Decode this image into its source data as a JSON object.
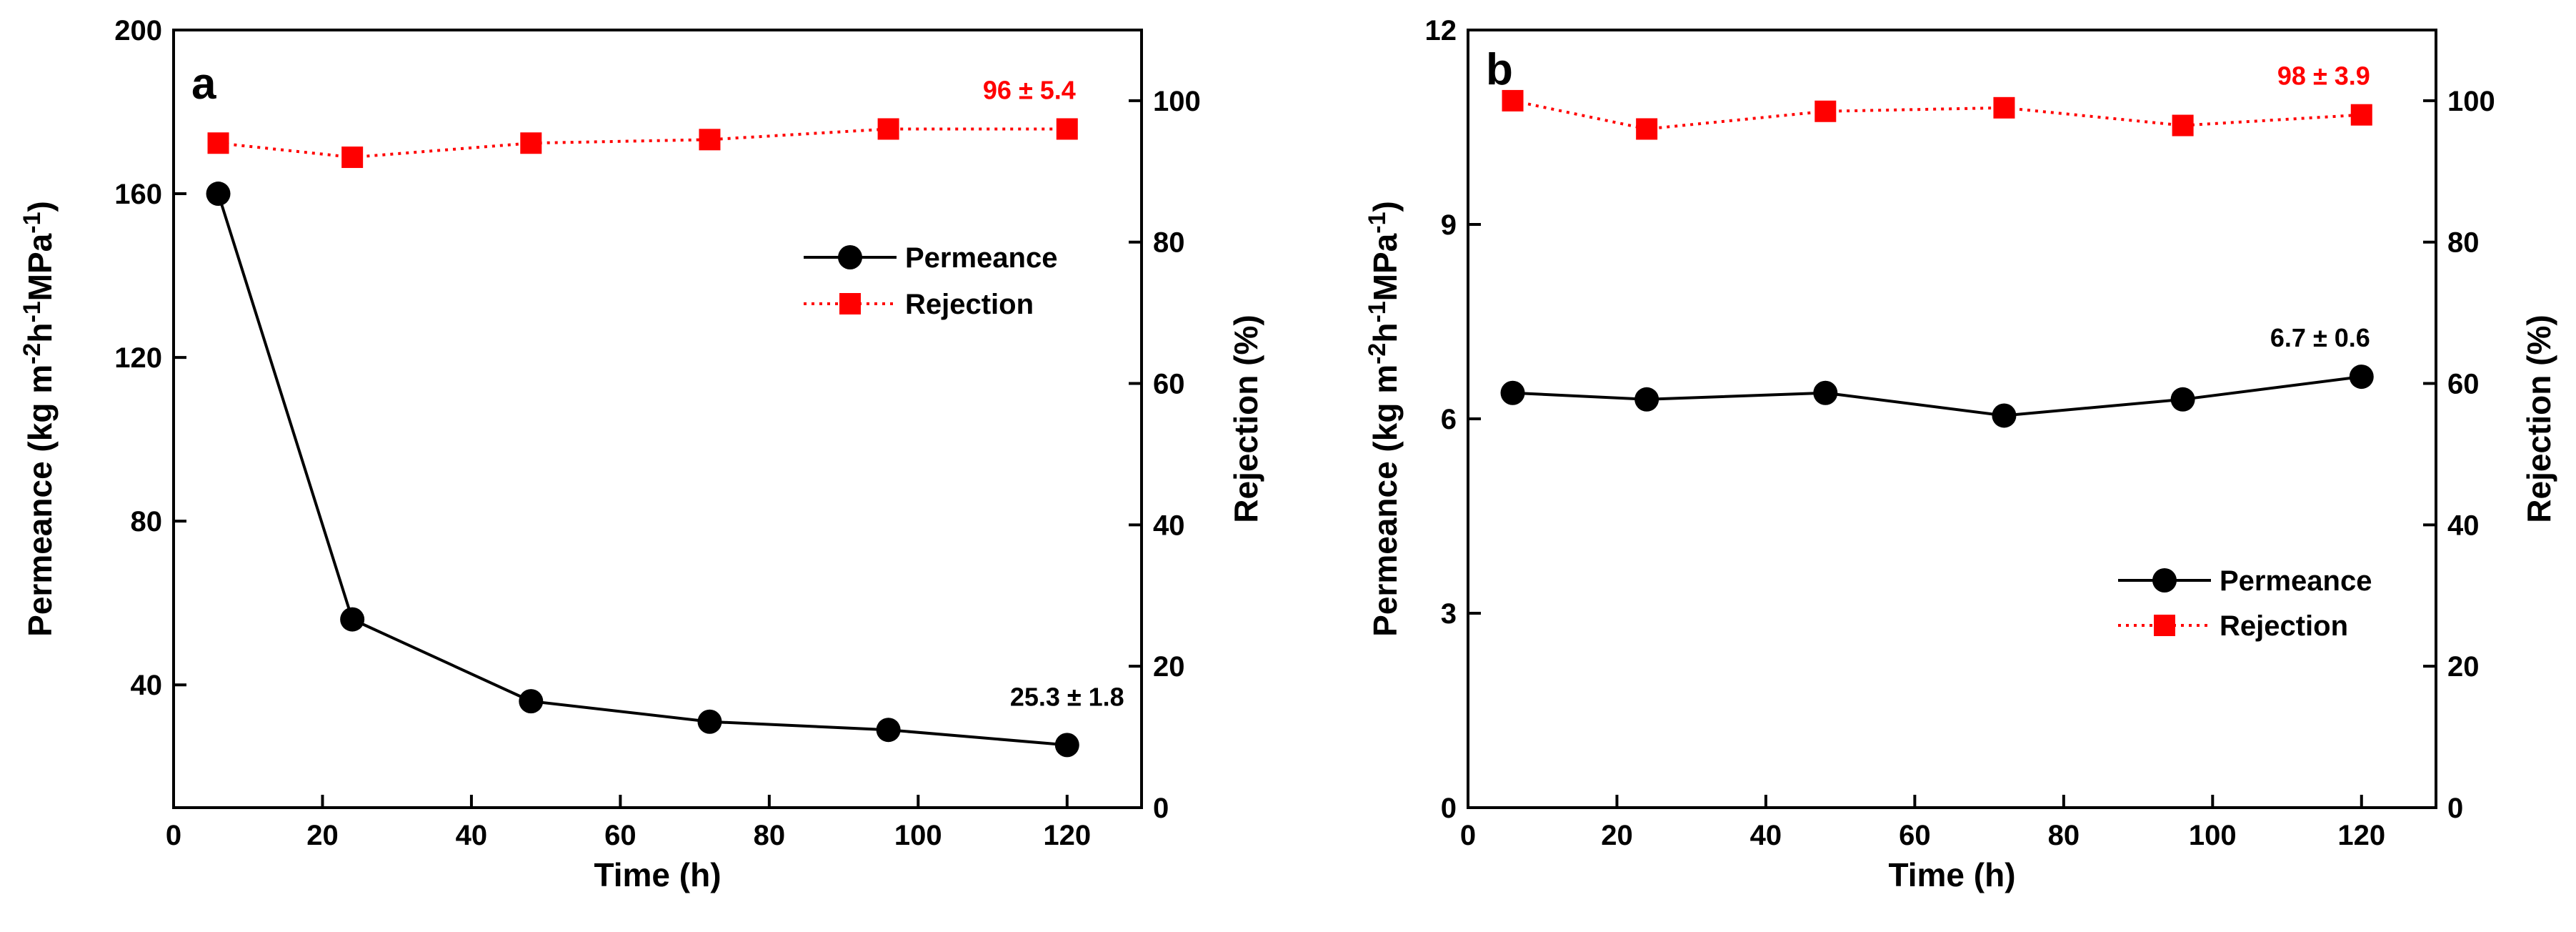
{
  "colors": {
    "permeance": "#000000",
    "rejection": "#ff0000"
  },
  "chart_data": [
    {
      "panel": "a",
      "type": "line",
      "xlabel": "Time (h)",
      "ylabel_left": "Permeance (kg m-2h-1MPa-1)",
      "ylabel_left_parts": {
        "base": "Permeance (kg m",
        "sup1": "-2",
        "mid1": "h",
        "sup2": "-1",
        "mid2": "MPa",
        "sup3": "-1",
        "end": ")"
      },
      "ylabel_right": "Rejection (%)",
      "xlim": [
        0,
        130
      ],
      "xticks": [
        "0",
        "20",
        "40",
        "60",
        "80",
        "100",
        "120"
      ],
      "ylim_left": [
        10,
        200
      ],
      "yticks_left": [
        "40",
        "80",
        "120",
        "160",
        "200"
      ],
      "ylim_right": [
        0,
        110
      ],
      "yticks_right": [
        "0",
        "20",
        "40",
        "60",
        "80",
        "100"
      ],
      "legend_position": "middle-right",
      "series": [
        {
          "name": "Permeance",
          "axis": "left",
          "style": "solid",
          "marker": "circle",
          "x": [
            6,
            24,
            48,
            72,
            96,
            120
          ],
          "values": [
            160,
            56,
            36,
            31,
            29,
            25.3
          ]
        },
        {
          "name": "Rejection",
          "axis": "right",
          "style": "dotted",
          "marker": "square",
          "x": [
            6,
            24,
            48,
            72,
            96,
            120
          ],
          "values": [
            94,
            92,
            94,
            94.5,
            96,
            96
          ]
        }
      ],
      "annotations": [
        {
          "text": "96 ± 5.4",
          "series": "Rejection"
        },
        {
          "text": "25.3 ± 1.8",
          "series": "Permeance"
        }
      ]
    },
    {
      "panel": "b",
      "type": "line",
      "xlabel": "Time (h)",
      "ylabel_left": "Permeance (kg m-2h-1MPa-1)",
      "ylabel_left_parts": {
        "base": "Permeance (kg m",
        "sup1": "-2",
        "mid1": "h",
        "sup2": "-1",
        "mid2": "MPa",
        "sup3": "-1",
        "end": ")"
      },
      "ylabel_right": "Rejection (%)",
      "xlim": [
        0,
        130
      ],
      "xticks": [
        "0",
        "20",
        "40",
        "60",
        "80",
        "100",
        "120"
      ],
      "ylim_left": [
        0,
        12
      ],
      "yticks_left": [
        "0",
        "3",
        "6",
        "9",
        "12"
      ],
      "ylim_right": [
        0,
        110
      ],
      "yticks_right": [
        "0",
        "20",
        "40",
        "60",
        "80",
        "100"
      ],
      "legend_position": "lower-right",
      "series": [
        {
          "name": "Permeance",
          "axis": "left",
          "style": "solid",
          "marker": "circle",
          "x": [
            6,
            24,
            48,
            72,
            96,
            120
          ],
          "values": [
            6.4,
            6.3,
            6.4,
            6.05,
            6.3,
            6.65
          ]
        },
        {
          "name": "Rejection",
          "axis": "right",
          "style": "dotted",
          "marker": "square",
          "x": [
            6,
            24,
            48,
            72,
            96,
            120
          ],
          "values": [
            100,
            96,
            98.5,
            99,
            96.5,
            98
          ]
        }
      ],
      "annotations": [
        {
          "text": "98 ± 3.9",
          "series": "Rejection"
        },
        {
          "text": "6.7 ± 0.6",
          "series": "Permeance"
        }
      ]
    }
  ]
}
